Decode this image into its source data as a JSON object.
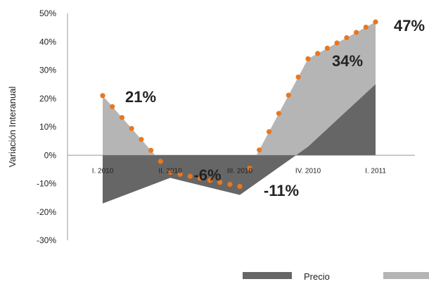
{
  "chart_data": {
    "type": "area",
    "ylabel": "Variación Interanual",
    "xlabel": "",
    "title": "",
    "categories": [
      "I. 2010",
      "II. 2010",
      "III. 2010",
      "IV. 2010",
      "I. 2011"
    ],
    "y_ticks": [
      "50%",
      "40%",
      "30%",
      "20%",
      "10%",
      "0%",
      "-10%",
      "-20%",
      "-30%"
    ],
    "ylim": [
      -30,
      50
    ],
    "series": [
      {
        "name": "Precio",
        "type": "area",
        "color": "#666666",
        "values": [
          -17,
          -8,
          -14,
          3,
          25
        ]
      },
      {
        "name": "",
        "type": "area",
        "color": "#b5b5b5",
        "values": [
          21,
          -6,
          -11,
          34,
          47
        ]
      },
      {
        "name": "",
        "type": "line-dotted",
        "color": "#e87722",
        "values": [
          21,
          -6,
          -11,
          34,
          47
        ]
      }
    ],
    "data_labels": [
      "21%",
      "-6%",
      "-11%",
      "34%",
      "47%"
    ],
    "legend_position": "bottom-right"
  }
}
